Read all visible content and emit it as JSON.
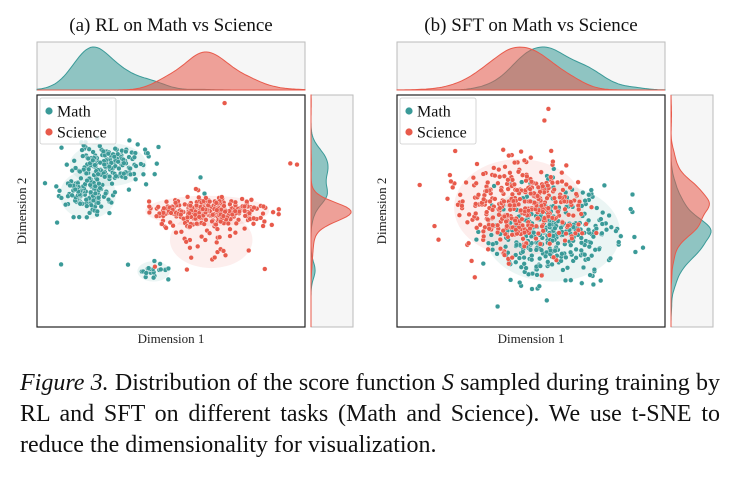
{
  "chart_data": [
    {
      "type": "scatter",
      "title": "(a) RL on Math vs Science",
      "xlabel": "Dimension 1",
      "ylabel": "Dimension 2",
      "xlim": [
        -10,
        10
      ],
      "ylim": [
        -10,
        10
      ],
      "legend": "top-left",
      "marginal_top": "kde",
      "marginal_right": "kde",
      "series": [
        {
          "name": "Math",
          "color": "#3a9a98",
          "clusters": [
            {
              "cx": -4.7,
              "cy": 4.0,
              "sx": 1.3,
              "sy": 0.85,
              "n": 150
            },
            {
              "cx": -6.2,
              "cy": 1.4,
              "sx": 0.95,
              "sy": 0.95,
              "n": 130
            },
            {
              "cx": -1.3,
              "cy": -5.2,
              "sx": 0.55,
              "sy": 0.4,
              "n": 22
            }
          ],
          "outliers": [
            [
              -9.4,
              2.4
            ],
            [
              -5.5,
              6.3
            ],
            [
              2.2,
              2.9
            ],
            [
              2.5,
              1.5
            ],
            [
              -8.5,
              -1.0
            ],
            [
              -8.2,
              -4.6
            ],
            [
              -0.2,
              -5.9
            ]
          ]
        },
        {
          "name": "Science",
          "color": "#e85a4b",
          "clusters": [
            {
              "cx": 2.7,
              "cy": 0.0,
              "sx": 2.1,
              "sy": 0.6,
              "n": 300
            },
            {
              "cx": 3.0,
              "cy": -2.5,
              "sx": 1.4,
              "sy": 1.1,
              "n": 30
            }
          ],
          "outliers": [
            [
              4.0,
              9.3
            ],
            [
              8.9,
              4.1
            ],
            [
              9.4,
              4.0
            ],
            [
              -1.2,
              -4.8
            ],
            [
              7.0,
              -5.0
            ]
          ]
        }
      ]
    },
    {
      "type": "scatter",
      "title": "(b) SFT on Math vs Science",
      "xlabel": "Dimension 1",
      "ylabel": "Dimension 2",
      "xlim": [
        -10,
        10
      ],
      "ylim": [
        -10,
        10
      ],
      "legend": "top-left",
      "marginal_top": "kde",
      "marginal_right": "kde",
      "series": [
        {
          "name": "Math",
          "color": "#3a9a98",
          "clusters": [
            {
              "cx": 1.6,
              "cy": -1.9,
              "sx": 2.3,
              "sy": 1.9,
              "n": 360
            }
          ],
          "outliers": [
            [
              4.5,
              1.8
            ],
            [
              5.2,
              -6.0
            ]
          ]
        },
        {
          "name": "Science",
          "color": "#e85a4b",
          "clusters": [
            {
              "cx": -0.9,
              "cy": 0.3,
              "sx": 2.2,
              "sy": 1.9,
              "n": 380
            }
          ],
          "outliers": [
            [
              1.3,
              8.8
            ],
            [
              1.0,
              7.8
            ],
            [
              -7.2,
              -1.3
            ],
            [
              -3.2,
              -3.3
            ]
          ]
        }
      ]
    }
  ],
  "caption": {
    "label": "Figure 3.",
    "text_before_symbol": "Distribution of the score function",
    "symbol": "S",
    "text_after_symbol": "sampled during training by RL and SFT on different tasks (Math and Science). We use t-SNE to reduce the dimensionality for visualization."
  }
}
